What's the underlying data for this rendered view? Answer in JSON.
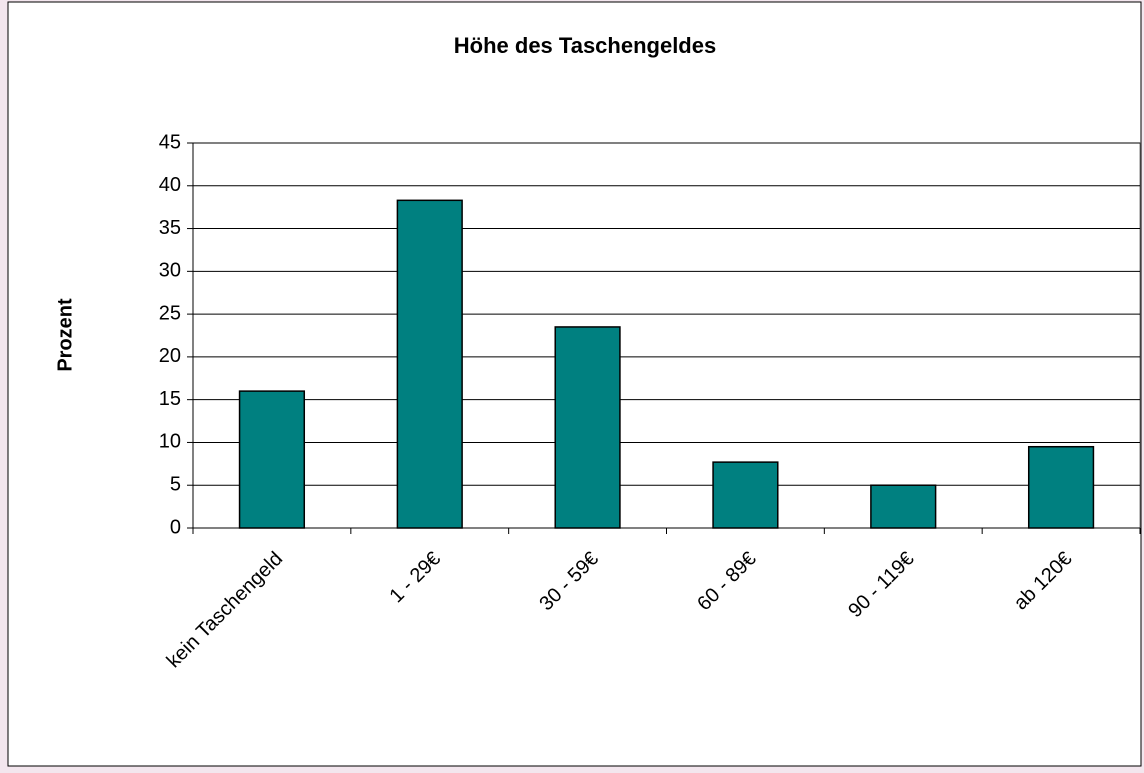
{
  "chart_data": {
    "type": "bar",
    "title": "Höhe des Taschengeldes",
    "y_label": "Prozent",
    "categories": [
      "kein Taschengeld",
      "1 - 29€",
      "30 - 59€",
      "60 - 89€",
      "90 - 119€",
      "ab 120€"
    ],
    "values": [
      16.0,
      38.3,
      23.5,
      7.7,
      5.0,
      9.5
    ],
    "color": "#008080",
    "ylim": [
      0,
      45
    ],
    "yticks": [
      0,
      5,
      10,
      15,
      20,
      25,
      30,
      35,
      40,
      45
    ],
    "grid": true
  }
}
